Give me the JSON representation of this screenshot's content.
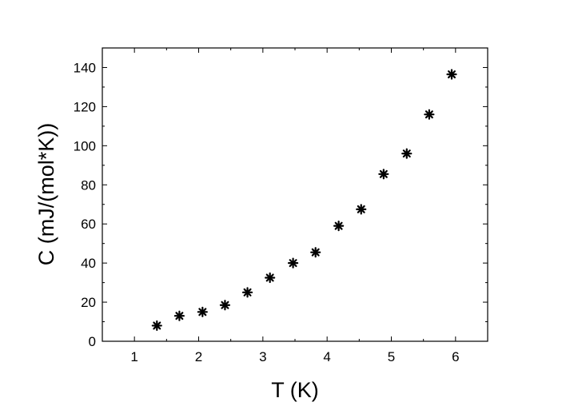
{
  "chart_data": {
    "type": "scatter",
    "title": "",
    "xlabel": "T (K)",
    "ylabel": "C (mJ/(mol*K))",
    "xlim": [
      0.5,
      6.5
    ],
    "ylim": [
      0,
      150
    ],
    "xticks": [
      1,
      2,
      3,
      4,
      5,
      6
    ],
    "yticks": [
      0,
      20,
      40,
      60,
      80,
      100,
      120,
      140
    ],
    "grid": false,
    "legend": "none",
    "marker": "asterisk",
    "marker_color": "#000000",
    "series": [
      {
        "x": [
          1.35,
          1.7,
          2.06,
          2.41,
          2.76,
          3.11,
          3.47,
          3.82,
          4.18,
          4.53,
          4.88,
          5.24,
          5.59,
          5.94
        ],
        "y": [
          8,
          13,
          15,
          18.5,
          25,
          32.5,
          40,
          45.5,
          59,
          67.5,
          85.5,
          96,
          116,
          136.5
        ]
      }
    ]
  }
}
